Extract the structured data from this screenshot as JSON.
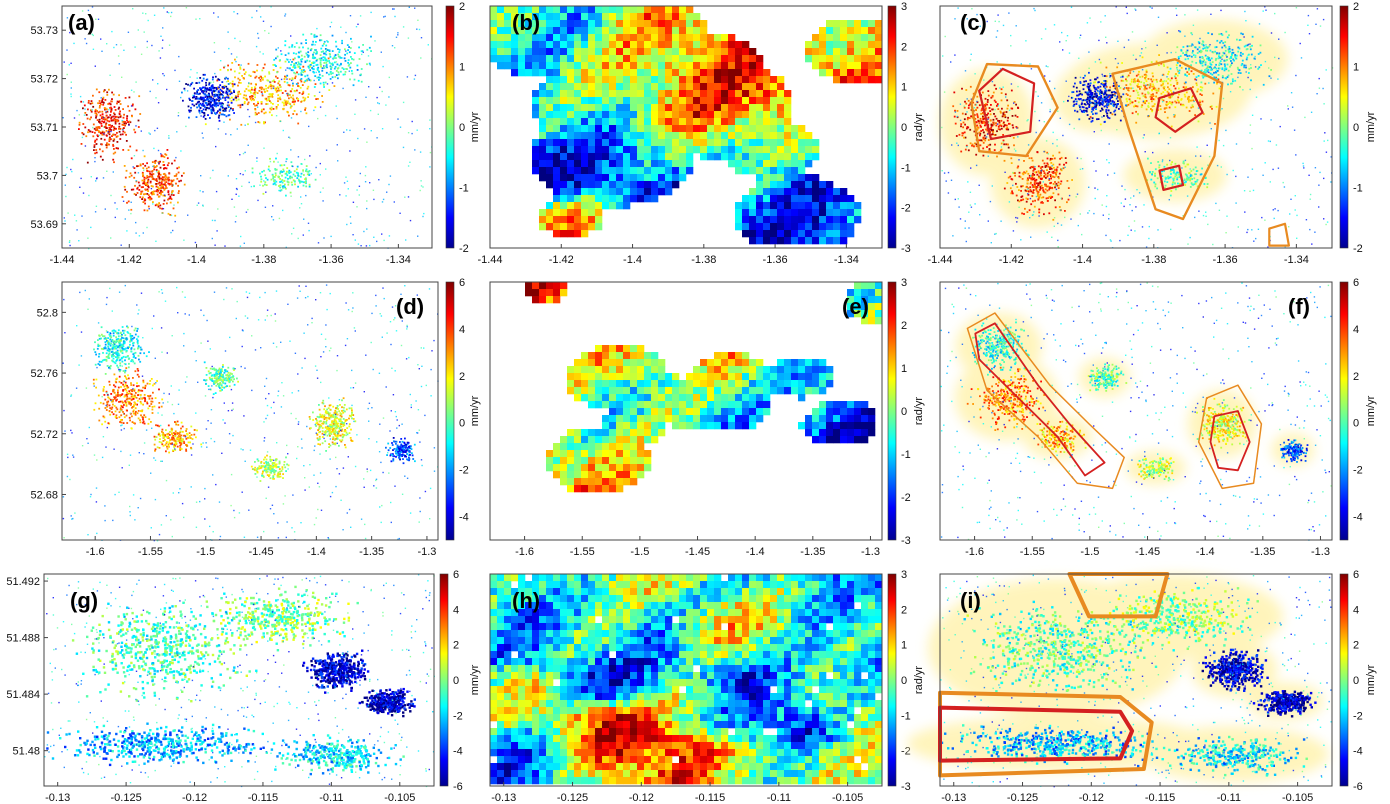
{
  "chart_data": {
    "type": "scatter",
    "colormap": "jet",
    "panels": [
      {
        "label": "(a)",
        "kind": "points",
        "xticks": [
          "-1.44",
          "-1.42",
          "-1.4",
          "-1.38",
          "-1.36",
          "-1.34"
        ],
        "yticks": [
          "53.73",
          "53.72",
          "53.71",
          "53.7",
          "53.69"
        ],
        "xlim": [
          -1.44,
          -1.33
        ],
        "ylim": [
          53.685,
          53.735
        ],
        "colorbar": {
          "ticks": [
            "2",
            "1",
            "0",
            "-1",
            "-2"
          ],
          "unit": "mm/yr",
          "range": [
            -2,
            2
          ]
        },
        "contours": false
      },
      {
        "label": "(b)",
        "kind": "field",
        "xticks": [
          "-1.44",
          "-1.42",
          "-1.4",
          "-1.38",
          "-1.36",
          "-1.34"
        ],
        "yticks": [],
        "xlim": [
          -1.44,
          -1.33
        ],
        "ylim": [
          53.685,
          53.735
        ],
        "colorbar": {
          "ticks": [
            "3",
            "2",
            "1",
            "0",
            "-1",
            "-2",
            "-3"
          ],
          "unit": "rad/yr",
          "range": [
            -3,
            3
          ]
        },
        "contours": false
      },
      {
        "label": "(c)",
        "kind": "points",
        "xticks": [
          "-1.44",
          "-1.42",
          "-1.4",
          "-1.38",
          "-1.36",
          "-1.34"
        ],
        "yticks": [],
        "xlim": [
          -1.44,
          -1.33
        ],
        "ylim": [
          53.685,
          53.735
        ],
        "colorbar": {
          "ticks": [
            "2",
            "1",
            "0",
            "-1",
            "-2"
          ],
          "unit": "mm/yr",
          "range": [
            -2,
            2
          ]
        },
        "contours": true
      },
      {
        "label": "(d)",
        "kind": "points",
        "xticks": [
          "-1.6",
          "-1.55",
          "-1.5",
          "-1.45",
          "-1.4",
          "-1.35",
          "-1.3"
        ],
        "yticks": [
          "52.8",
          "52.76",
          "52.72",
          "52.68"
        ],
        "xlim": [
          -1.63,
          -1.29
        ],
        "ylim": [
          52.65,
          52.82
        ],
        "colorbar": {
          "ticks": [
            "6",
            "4",
            "2",
            "0",
            "-2",
            "-4"
          ],
          "unit": "mm/yr",
          "range": [
            -5,
            6
          ]
        },
        "contours": false
      },
      {
        "label": "(e)",
        "kind": "field",
        "xticks": [
          "-1.6",
          "-1.55",
          "-1.5",
          "-1.45",
          "-1.4",
          "-1.35",
          "-1.3"
        ],
        "yticks": [],
        "xlim": [
          -1.63,
          -1.29
        ],
        "ylim": [
          52.65,
          52.82
        ],
        "colorbar": {
          "ticks": [
            "3",
            "2",
            "1",
            "0",
            "-1",
            "-2",
            "-3"
          ],
          "unit": "rad/yr",
          "range": [
            -3,
            3
          ]
        },
        "contours": false
      },
      {
        "label": "(f)",
        "kind": "points",
        "xticks": [
          "-1.6",
          "-1.55",
          "-1.5",
          "-1.45",
          "-1.4",
          "-1.35",
          "-1.3"
        ],
        "yticks": [],
        "xlim": [
          -1.63,
          -1.29
        ],
        "ylim": [
          52.65,
          52.82
        ],
        "colorbar": {
          "ticks": [
            "6",
            "4",
            "2",
            "0",
            "-2",
            "-4"
          ],
          "unit": "mm/yr",
          "range": [
            -5,
            6
          ]
        },
        "contours": true
      },
      {
        "label": "(g)",
        "kind": "points",
        "xticks": [
          "-0.13",
          "-0.125",
          "-0.12",
          "-0.115",
          "-0.11",
          "-0.105"
        ],
        "yticks": [
          "51.492",
          "51.488",
          "51.484",
          "51.48"
        ],
        "xlim": [
          -0.131,
          -0.1025
        ],
        "ylim": [
          51.4775,
          51.4925
        ],
        "colorbar": {
          "ticks": [
            "6",
            "4",
            "2",
            "0",
            "-2",
            "-4",
            "-6"
          ],
          "unit": "mm/yr",
          "range": [
            -6,
            6
          ]
        },
        "contours": false
      },
      {
        "label": "(h)",
        "kind": "field",
        "xticks": [
          "-0.13",
          "-0.125",
          "-0.12",
          "-0.115",
          "-0.11",
          "-0.105"
        ],
        "yticks": [],
        "xlim": [
          -0.131,
          -0.1025
        ],
        "ylim": [
          51.4775,
          51.4925
        ],
        "colorbar": {
          "ticks": [
            "3",
            "2",
            "1",
            "0",
            "-1",
            "-2",
            "-3"
          ],
          "unit": "rad/yr",
          "range": [
            -3,
            3
          ]
        },
        "contours": false
      },
      {
        "label": "(i)",
        "kind": "points",
        "xticks": [
          "-0.13",
          "-0.125",
          "-0.12",
          "-0.115",
          "-0.11",
          "-0.105"
        ],
        "yticks": [],
        "xlim": [
          -0.131,
          -0.1025
        ],
        "ylim": [
          51.4775,
          51.4925
        ],
        "colorbar": {
          "ticks": [
            "6",
            "4",
            "2",
            "0",
            "-2",
            "-4",
            "-6"
          ],
          "unit": "mm/yr",
          "range": [
            -6,
            6
          ]
        },
        "contours": true
      }
    ]
  },
  "colors": {
    "contour_inner": "#d42020",
    "contour_outer": "#e88a20",
    "highlight_fill": "#fff3b0"
  }
}
